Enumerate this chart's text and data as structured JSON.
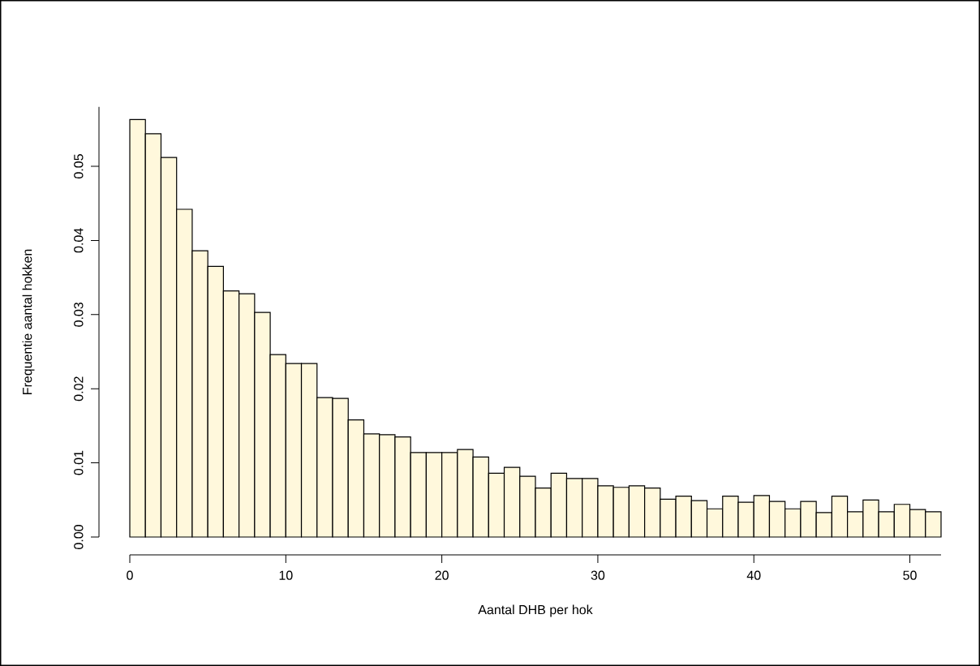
{
  "chart_data": {
    "type": "histogram",
    "xlabel": "Aantal DHB per hok",
    "ylabel": "Frequentie aantal hokken",
    "bins": [
      0,
      1,
      2,
      3,
      4,
      5,
      6,
      7,
      8,
      9,
      10,
      11,
      12,
      13,
      14,
      15,
      16,
      17,
      18,
      19,
      20,
      21,
      22,
      23,
      24,
      25,
      26,
      27,
      28,
      29,
      30,
      31,
      32,
      33,
      34,
      35,
      36,
      37,
      38,
      39,
      40,
      41,
      42,
      43,
      44,
      45,
      46,
      47,
      48,
      49,
      50,
      51,
      52
    ],
    "values": [
      0.0563,
      0.0544,
      0.0512,
      0.0442,
      0.0386,
      0.0365,
      0.0332,
      0.0328,
      0.0303,
      0.0246,
      0.0234,
      0.0234,
      0.0188,
      0.0187,
      0.0158,
      0.0139,
      0.0138,
      0.0135,
      0.0114,
      0.0114,
      0.0114,
      0.0118,
      0.0108,
      0.0086,
      0.0094,
      0.0082,
      0.0066,
      0.0086,
      0.0079,
      0.0079,
      0.0069,
      0.0067,
      0.0069,
      0.0066,
      0.0051,
      0.0055,
      0.0049,
      0.0038,
      0.0055,
      0.0047,
      0.0056,
      0.0048,
      0.0038,
      0.0048,
      0.0033,
      0.0055,
      0.0034,
      0.005,
      0.0034,
      0.0044,
      0.0037,
      0.0034
    ],
    "color": "#fff8dc",
    "xlim": [
      0,
      52
    ],
    "ylim": [
      0,
      0.058
    ],
    "xticks": [
      0,
      10,
      20,
      30,
      40,
      50
    ],
    "yticks": [
      {
        "value": 0,
        "label": "0.00"
      },
      {
        "value": 0.01,
        "label": "0.01"
      },
      {
        "value": 0.02,
        "label": "0.02"
      },
      {
        "value": 0.03,
        "label": "0.03"
      },
      {
        "value": 0.04,
        "label": "0.04"
      },
      {
        "value": 0.05,
        "label": "0.05"
      }
    ],
    "grid": false
  }
}
